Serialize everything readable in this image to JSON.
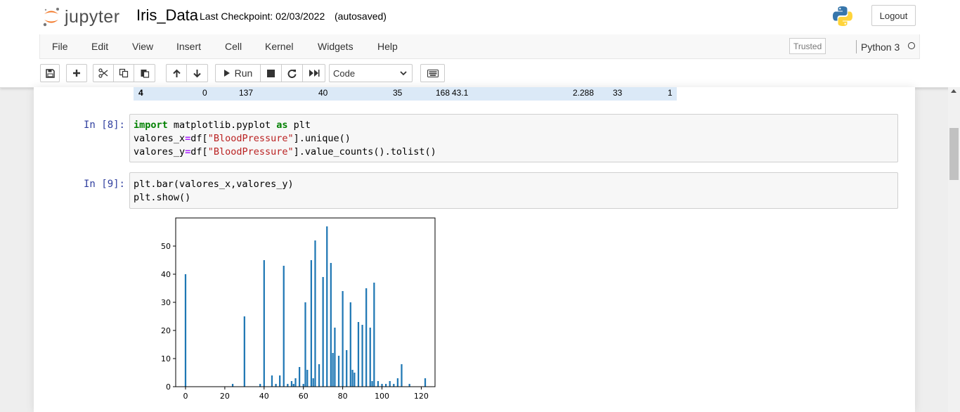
{
  "header": {
    "logo_text": "jupyter",
    "notebook_name": "Iris_Data",
    "checkpoint": "Last Checkpoint: 02/03/2022",
    "autosave": "(autosaved)",
    "logout_label": "Logout"
  },
  "menu": {
    "items": [
      "File",
      "Edit",
      "View",
      "Insert",
      "Cell",
      "Kernel",
      "Widgets",
      "Help"
    ],
    "trusted": "Trusted",
    "kernel": "Python 3"
  },
  "toolbar": {
    "run_label": "Run",
    "cell_type": "Code",
    "icons": [
      "save-icon",
      "plus-icon",
      "cut-icon",
      "copy-icon",
      "paste-icon",
      "arrow-up-icon",
      "arrow-down-icon",
      "play-icon",
      "stop-icon",
      "restart-icon",
      "fast-forward-icon",
      "keyboard-icon"
    ]
  },
  "dataframe_row": {
    "index": "4",
    "values": [
      "0",
      "137",
      "40",
      "35",
      "168",
      "43.1",
      "2.288",
      "33",
      "1"
    ]
  },
  "cells": [
    {
      "prompt": "In [8]:",
      "lines": [
        "import matplotlib.pyplot as plt",
        "valores_x=df[\"BloodPressure\"].unique()",
        "valores_y=df[\"BloodPressure\"].value_counts().tolist()"
      ]
    },
    {
      "prompt": "In [9]:",
      "lines": [
        "plt.bar(valores_x,valores_y)",
        "plt.show()"
      ]
    }
  ],
  "chart_data": {
    "type": "bar",
    "title": "",
    "xlabel": "",
    "ylabel": "",
    "xlim": [
      -5,
      127
    ],
    "ylim": [
      0,
      60
    ],
    "xticks": [
      0,
      20,
      40,
      60,
      80,
      100,
      120
    ],
    "yticks": [
      0,
      10,
      20,
      30,
      40,
      50
    ],
    "color": "#1f77b4",
    "x": [
      0,
      24,
      30,
      38,
      40,
      44,
      46,
      48,
      50,
      52,
      54,
      55,
      56,
      58,
      60,
      61,
      62,
      64,
      65,
      66,
      68,
      70,
      72,
      74,
      75,
      76,
      78,
      80,
      82,
      84,
      85,
      86,
      88,
      90,
      92,
      94,
      95,
      96,
      98,
      100,
      102,
      104,
      106,
      108,
      110,
      114,
      122
    ],
    "values": [
      40,
      1,
      25,
      1,
      45,
      4,
      1,
      4,
      43,
      1,
      2,
      1,
      3,
      7,
      1,
      30,
      6,
      45,
      3,
      52,
      8,
      39,
      57,
      44,
      12,
      21,
      11,
      34,
      13,
      30,
      6,
      5,
      23,
      22,
      35,
      21,
      2,
      37,
      2,
      1,
      1,
      2,
      1,
      3,
      8,
      1,
      3
    ]
  }
}
